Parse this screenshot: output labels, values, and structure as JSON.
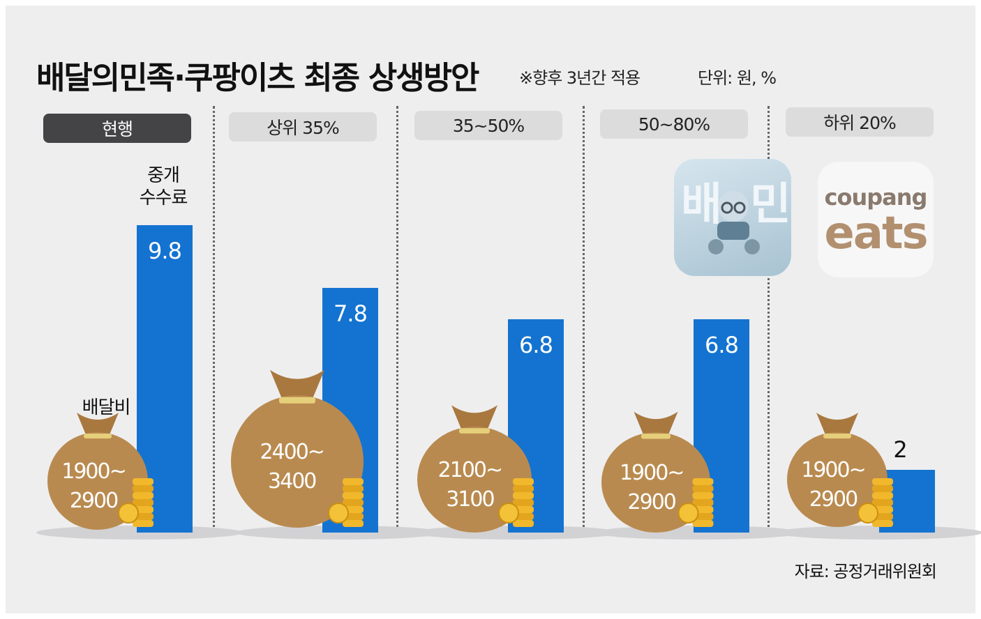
{
  "title": "배달의민족·쿠팡이츠 최종 상생방안",
  "note": "※향후 3년간 적용",
  "unit": "단위: 원, %",
  "source": "자료: 공정거래위원회",
  "fee_label": "중개\n수수료",
  "delivery_label": "배달비",
  "logos": {
    "baemin_text": "배민",
    "coupang": "coupang",
    "eats": "eats"
  },
  "colors": {
    "bar": "#1473d0",
    "bag": "#b98a4f",
    "coin": "#f1b82c",
    "pill_current": "#444446",
    "pill": "#dcdcdc"
  },
  "chart_data": {
    "type": "bar",
    "categories": [
      "현행",
      "상위 35%",
      "35~50%",
      "50~80%",
      "하위 20%"
    ],
    "series": [
      {
        "name": "중개 수수료",
        "values": [
          9.8,
          7.8,
          6.8,
          6.8,
          2
        ],
        "value_labels": [
          "9.8",
          "7.8",
          "6.8",
          "6.8",
          "2"
        ]
      },
      {
        "name": "배달비",
        "values": [
          "1900~2900",
          "2400~3400",
          "2100~3100",
          "1900~2900",
          "1900~2900"
        ],
        "value_lines": [
          [
            "1900~",
            "2900"
          ],
          [
            "2400~",
            "3400"
          ],
          [
            "2100~",
            "3100"
          ],
          [
            "1900~",
            "2900"
          ],
          [
            "1900~",
            "2900"
          ]
        ]
      }
    ],
    "ylim": [
      0,
      10
    ]
  }
}
